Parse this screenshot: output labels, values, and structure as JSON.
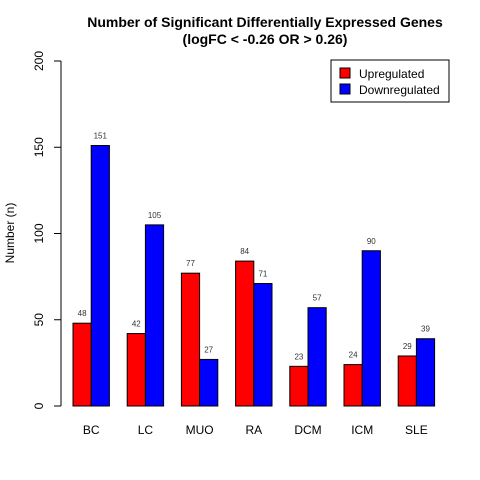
{
  "chart_data": {
    "type": "bar",
    "title": "Number of Significant Differentially Expressed Genes",
    "subtitle": "(logFC < -0.26 OR > 0.26)",
    "xlabel": "",
    "ylabel": "Number (n)",
    "ylim": [
      0,
      200
    ],
    "yticks": [
      0,
      50,
      100,
      150,
      200
    ],
    "categories": [
      "BC",
      "LC",
      "MUO",
      "RA",
      "DCM",
      "ICM",
      "SLE"
    ],
    "series": [
      {
        "name": "Upregulated",
        "color": "#ff0000",
        "values": [
          48,
          42,
          77,
          84,
          23,
          24,
          29
        ]
      },
      {
        "name": "Downregulated",
        "color": "#0000ff",
        "values": [
          151,
          105,
          27,
          71,
          57,
          90,
          39
        ]
      }
    ],
    "legend": "top-right",
    "grid": false
  }
}
